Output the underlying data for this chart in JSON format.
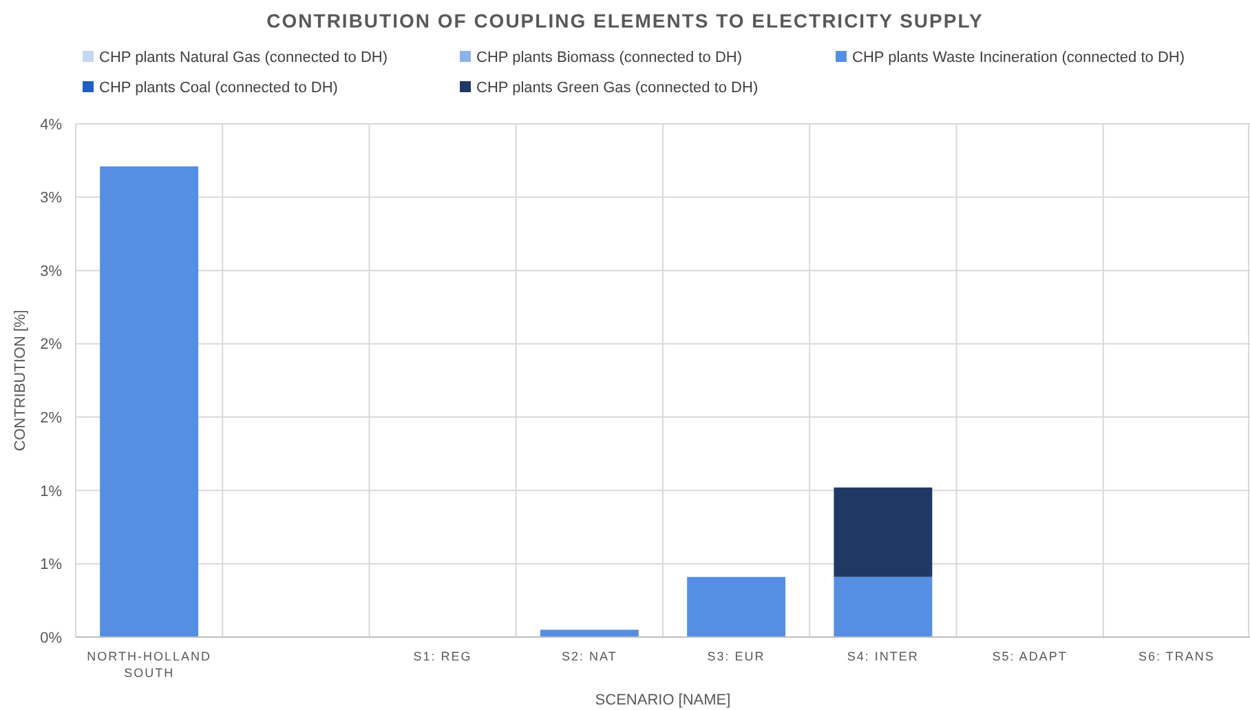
{
  "chart_data": {
    "type": "bar",
    "stacked": true,
    "title": "CONTRIBUTION OF COUPLING ELEMENTS TO ELECTRICITY SUPPLY",
    "xlabel": "SCENARIO [NAME]",
    "ylabel": "CONTRIBUTION [%]",
    "categories": [
      "NORTH-HOLLAND SOUTH",
      null,
      "S1: REG",
      "S2: NAT",
      "S3: EUR",
      "S4: INTER",
      "S5: ADAPT",
      "S6: TRANS"
    ],
    "series": [
      {
        "name": "CHP plants Natural Gas (connected to DH)",
        "color": "#c5d8f1",
        "values": [
          0,
          0,
          0,
          0,
          0,
          0,
          0,
          0
        ]
      },
      {
        "name": "CHP plants Biomass (connected to DH)",
        "color": "#8db3e9",
        "values": [
          0,
          0,
          0,
          0,
          0,
          0,
          0,
          0
        ]
      },
      {
        "name": "CHP plants Waste Incineration (connected to DH)",
        "color": "#558ee3",
        "values": [
          3.21,
          0,
          0,
          0.05,
          0.41,
          0.41,
          0,
          0
        ]
      },
      {
        "name": "CHP plants Coal (connected to DH)",
        "color": "#1f5fc4",
        "values": [
          0,
          0,
          0,
          0,
          0,
          0,
          0,
          0
        ]
      },
      {
        "name": "CHP plants Green Gas (connected to DH)",
        "color": "#1f3864",
        "values": [
          0,
          0,
          0,
          0,
          0,
          0.61,
          0,
          0
        ]
      }
    ],
    "ylim": [
      0,
      3.5
    ],
    "yticks": [
      {
        "value": 0,
        "label": "0%"
      },
      {
        "value": 0.5,
        "label": "1%"
      },
      {
        "value": 1,
        "label": "1%"
      },
      {
        "value": 1.5,
        "label": "2%"
      },
      {
        "value": 2,
        "label": "2%"
      },
      {
        "value": 2.5,
        "label": "3%"
      },
      {
        "value": 3,
        "label": "3%"
      },
      {
        "value": 3.5,
        "label": "4%"
      }
    ],
    "grid": true,
    "legend": "top"
  }
}
